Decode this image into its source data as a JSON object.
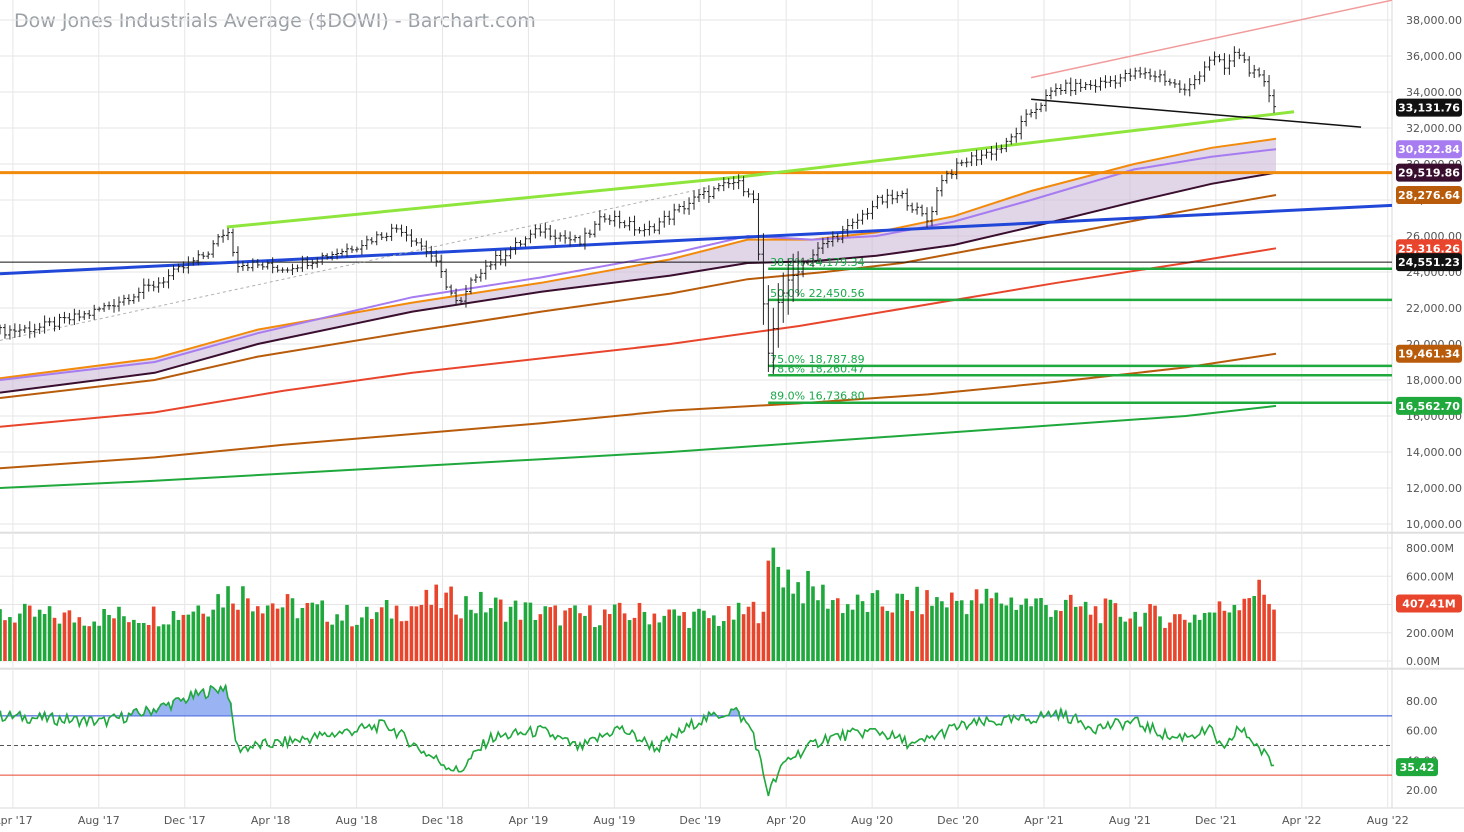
{
  "title": "Dow Jones Industrials Average ($DOWI) - Barchart.com",
  "colors": {
    "up": "#1fa83c",
    "down": "#e8452c",
    "grid": "#e6e6e6",
    "rsi": "#1fa83c"
  },
  "chart_data": [
    {
      "type": "line",
      "panel": "price",
      "title": "Dow Jones Industrials Average ($DOWI) - Barchart.com",
      "x_ticks": [
        "Apr '17",
        "Aug '17",
        "Dec '17",
        "Apr '18",
        "Aug '18",
        "Dec '18",
        "Apr '19",
        "Aug '19",
        "Dec '19",
        "Apr '20",
        "Aug '20",
        "Dec '20",
        "Apr '21",
        "Aug '21",
        "Dec '21",
        "Apr '22",
        "Aug '22"
      ],
      "y_ticks": [
        "10,000.00",
        "12,000.00",
        "14,000.00",
        "16,000.00",
        "18,000.00",
        "20,000.00",
        "22,000.00",
        "24,000.00",
        "26,000.00",
        "28,000.00",
        "30,000.00",
        "32,000.00",
        "34,000.00",
        "36,000.00",
        "38,000.00"
      ],
      "ylim": [
        10000,
        38500
      ],
      "x_range": [
        2017.2,
        2022.6
      ],
      "price_anchors": [
        [
          2017.2,
          20700
        ],
        [
          2017.35,
          20900
        ],
        [
          2017.55,
          21700
        ],
        [
          2017.8,
          23300
        ],
        [
          2018.0,
          25000
        ],
        [
          2018.08,
          26400
        ],
        [
          2018.12,
          24500
        ],
        [
          2018.3,
          24200
        ],
        [
          2018.55,
          25300
        ],
        [
          2018.75,
          26500
        ],
        [
          2018.87,
          25000
        ],
        [
          2018.98,
          22000
        ],
        [
          2019.05,
          24000
        ],
        [
          2019.3,
          26400
        ],
        [
          2019.45,
          25600
        ],
        [
          2019.55,
          27200
        ],
        [
          2019.7,
          26200
        ],
        [
          2019.9,
          28100
        ],
        [
          2020.05,
          29000
        ],
        [
          2020.12,
          28400
        ],
        [
          2020.18,
          19200
        ],
        [
          2020.22,
          22500
        ],
        [
          2020.3,
          24300
        ],
        [
          2020.42,
          25800
        ],
        [
          2020.5,
          26500
        ],
        [
          2020.6,
          27900
        ],
        [
          2020.7,
          28200
        ],
        [
          2020.8,
          26800
        ],
        [
          2020.85,
          29200
        ],
        [
          2020.95,
          30200
        ],
        [
          2021.1,
          31000
        ],
        [
          2021.2,
          32900
        ],
        [
          2021.3,
          34200
        ],
        [
          2021.45,
          34400
        ],
        [
          2021.6,
          35000
        ],
        [
          2021.7,
          34900
        ],
        [
          2021.8,
          34000
        ],
        [
          2021.9,
          36000
        ],
        [
          2021.95,
          35300
        ],
        [
          2022.0,
          36300
        ],
        [
          2022.05,
          35200
        ],
        [
          2022.1,
          34500
        ],
        [
          2022.15,
          33131.76
        ]
      ],
      "badges": [
        {
          "value": "33,131.76",
          "price": 33131.76,
          "color": "#111111"
        },
        {
          "value": "30,822.84",
          "price": 30822.84,
          "color": "#a67cf0"
        },
        {
          "value": "29,519.86",
          "price": 29519.86,
          "color": "#3a0e2f"
        },
        {
          "value": "28,276.64",
          "price": 28276.64,
          "color": "#b85c0b"
        },
        {
          "value": "25,316.26",
          "price": 25316.26,
          "color": "#e8452c"
        },
        {
          "value": "24,551.23",
          "price": 24551.23,
          "color": "#111111"
        },
        {
          "value": "19,461.34",
          "price": 19461.34,
          "color": "#b85c0b"
        },
        {
          "value": "16,562.70",
          "price": 16562.7,
          "color": "#1fa83c"
        }
      ],
      "fib_levels": [
        {
          "label": "38.2% 24,179.34",
          "price": 24179.34
        },
        {
          "label": "50.0% 22,450.56",
          "price": 22450.56
        },
        {
          "label": "75.0% 18,787.89",
          "price": 18787.89
        },
        {
          "label": "78.6% 18,260.47",
          "price": 18260.47
        },
        {
          "label": "89.0% 16,736.80",
          "price": 16736.8
        }
      ],
      "horizontal_lines": [
        {
          "price": 29519.86,
          "color": "#f28a0c"
        },
        {
          "price": 24551.23,
          "color": "#111111"
        }
      ],
      "trendlines": [
        {
          "from": [
            2018.08,
            26500
          ],
          "to": [
            2020.08,
            29300
          ],
          "color": "#8ee63c"
        },
        {
          "from": [
            2020.08,
            29300
          ],
          "to": [
            2022.22,
            32900
          ],
          "color": "#8ee63c"
        },
        {
          "from": [
            2017.2,
            23900
          ],
          "to": [
            2022.6,
            27700
          ],
          "color": "#2047d8"
        },
        {
          "from": [
            2021.2,
            33600
          ],
          "to": [
            2022.48,
            32050
          ],
          "color": "#111111"
        },
        {
          "from": [
            2021.2,
            34800
          ],
          "to": [
            2022.6,
            39100
          ],
          "color": "#f29a9a"
        }
      ],
      "moving_averages": [
        {
          "color": "#f28a0c",
          "points": [
            [
              2017.2,
              18100
            ],
            [
              2017.8,
              19200
            ],
            [
              2018.2,
              20800
            ],
            [
              2018.8,
              22300
            ],
            [
              2019.3,
              23400
            ],
            [
              2019.8,
              24700
            ],
            [
              2020.1,
              25800
            ],
            [
              2020.35,
              25800
            ],
            [
              2020.6,
              26200
            ],
            [
              2020.9,
              27100
            ],
            [
              2021.2,
              28500
            ],
            [
              2021.6,
              30000
            ],
            [
              2021.9,
              30900
            ],
            [
              2022.15,
              31400
            ]
          ]
        },
        {
          "color": "#a67cf0",
          "points": [
            [
              2017.2,
              18000
            ],
            [
              2017.8,
              19000
            ],
            [
              2018.2,
              20600
            ],
            [
              2018.8,
              22600
            ],
            [
              2019.3,
              23700
            ],
            [
              2019.8,
              25000
            ],
            [
              2020.1,
              26000
            ],
            [
              2020.35,
              25800
            ],
            [
              2020.6,
              26000
            ],
            [
              2020.9,
              26800
            ],
            [
              2021.2,
              28000
            ],
            [
              2021.6,
              29700
            ],
            [
              2021.9,
              30400
            ],
            [
              2022.15,
              30822.84
            ]
          ]
        },
        {
          "color": "#3a0e2f",
          "points": [
            [
              2017.2,
              17300
            ],
            [
              2017.8,
              18400
            ],
            [
              2018.2,
              20000
            ],
            [
              2018.8,
              21800
            ],
            [
              2019.3,
              22900
            ],
            [
              2019.8,
              23800
            ],
            [
              2020.1,
              24500
            ],
            [
              2020.35,
              24600
            ],
            [
              2020.6,
              24900
            ],
            [
              2020.9,
              25500
            ],
            [
              2021.2,
              26500
            ],
            [
              2021.6,
              27900
            ],
            [
              2021.9,
              28900
            ],
            [
              2022.15,
              29519.86
            ]
          ]
        },
        {
          "color": "#b85c0b",
          "points": [
            [
              2017.2,
              17000
            ],
            [
              2017.8,
              18000
            ],
            [
              2018.2,
              19300
            ],
            [
              2018.8,
              20700
            ],
            [
              2019.3,
              21800
            ],
            [
              2019.8,
              22800
            ],
            [
              2020.1,
              23600
            ],
            [
              2020.4,
              24000
            ],
            [
              2020.7,
              24500
            ],
            [
              2021.0,
              25300
            ],
            [
              2021.4,
              26300
            ],
            [
              2021.8,
              27400
            ],
            [
              2022.15,
              28276.64
            ]
          ]
        },
        {
          "color": "#e8452c",
          "points": [
            [
              2017.2,
              15400
            ],
            [
              2017.8,
              16200
            ],
            [
              2018.3,
              17400
            ],
            [
              2018.8,
              18400
            ],
            [
              2019.3,
              19200
            ],
            [
              2019.8,
              20000
            ],
            [
              2020.3,
              21000
            ],
            [
              2020.8,
              22200
            ],
            [
              2021.3,
              23400
            ],
            [
              2021.8,
              24500
            ],
            [
              2022.15,
              25316.26
            ]
          ]
        },
        {
          "color": "#b85c0b",
          "points": [
            [
              2017.2,
              13100
            ],
            [
              2017.8,
              13700
            ],
            [
              2018.3,
              14400
            ],
            [
              2018.8,
              15000
            ],
            [
              2019.3,
              15600
            ],
            [
              2019.8,
              16300
            ],
            [
              2020.3,
              16700
            ],
            [
              2020.8,
              17200
            ],
            [
              2021.3,
              17900
            ],
            [
              2021.8,
              18700
            ],
            [
              2022.15,
              19461.34
            ]
          ]
        },
        {
          "color": "#1fa83c",
          "points": [
            [
              2017.2,
              12000
            ],
            [
              2017.8,
              12400
            ],
            [
              2018.3,
              12800
            ],
            [
              2018.8,
              13200
            ],
            [
              2019.3,
              13600
            ],
            [
              2019.8,
              14000
            ],
            [
              2020.3,
              14500
            ],
            [
              2020.8,
              15000
            ],
            [
              2021.3,
              15500
            ],
            [
              2021.8,
              16000
            ],
            [
              2022.15,
              16562.7
            ]
          ]
        }
      ]
    },
    {
      "type": "bar",
      "panel": "volume",
      "y_ticks": [
        "0.00M",
        "200.00M",
        "400.00M",
        "600.00M",
        "800.00M"
      ],
      "ylim": [
        0,
        850
      ],
      "last_value": "407.41M",
      "volume_anchors": [
        [
          2017.2,
          320
        ],
        [
          2017.5,
          300
        ],
        [
          2017.9,
          330
        ],
        [
          2018.1,
          480
        ],
        [
          2018.3,
          380
        ],
        [
          2018.6,
          300
        ],
        [
          2018.9,
          420
        ],
        [
          2019.1,
          380
        ],
        [
          2019.4,
          310
        ],
        [
          2019.7,
          330
        ],
        [
          2020.0,
          290
        ],
        [
          2020.15,
          360
        ],
        [
          2020.2,
          700
        ],
        [
          2020.3,
          520
        ],
        [
          2020.5,
          380
        ],
        [
          2020.7,
          400
        ],
        [
          2020.9,
          420
        ],
        [
          2021.1,
          420
        ],
        [
          2021.3,
          380
        ],
        [
          2021.6,
          320
        ],
        [
          2021.8,
          300
        ],
        [
          2021.95,
          360
        ],
        [
          2022.05,
          500
        ],
        [
          2022.15,
          407
        ]
      ]
    },
    {
      "type": "line",
      "panel": "rsi",
      "y_ticks": [
        "20.00",
        "40.00",
        "60.00",
        "80.00"
      ],
      "ylim": [
        15,
        95
      ],
      "overbought": 70,
      "oversold": 30,
      "midline": 50,
      "last_value": "35.42",
      "rsi_anchors": [
        [
          2017.2,
          70
        ],
        [
          2017.4,
          68
        ],
        [
          2017.6,
          66
        ],
        [
          2017.75,
          72
        ],
        [
          2017.9,
          80
        ],
        [
          2018.0,
          86
        ],
        [
          2018.08,
          90
        ],
        [
          2018.12,
          48
        ],
        [
          2018.3,
          52
        ],
        [
          2018.5,
          58
        ],
        [
          2018.7,
          64
        ],
        [
          2018.85,
          45
        ],
        [
          2018.98,
          32
        ],
        [
          2019.1,
          55
        ],
        [
          2019.3,
          60
        ],
        [
          2019.45,
          48
        ],
        [
          2019.6,
          62
        ],
        [
          2019.75,
          48
        ],
        [
          2019.9,
          66
        ],
        [
          2020.05,
          74
        ],
        [
          2020.12,
          60
        ],
        [
          2020.18,
          18
        ],
        [
          2020.25,
          40
        ],
        [
          2020.4,
          55
        ],
        [
          2020.6,
          60
        ],
        [
          2020.75,
          50
        ],
        [
          2020.9,
          62
        ],
        [
          2021.0,
          65
        ],
        [
          2021.2,
          68
        ],
        [
          2021.3,
          72
        ],
        [
          2021.45,
          62
        ],
        [
          2021.6,
          66
        ],
        [
          2021.75,
          55
        ],
        [
          2021.9,
          60
        ],
        [
          2021.95,
          45
        ],
        [
          2022.0,
          62
        ],
        [
          2022.05,
          55
        ],
        [
          2022.1,
          45
        ],
        [
          2022.15,
          35.42
        ]
      ]
    }
  ]
}
